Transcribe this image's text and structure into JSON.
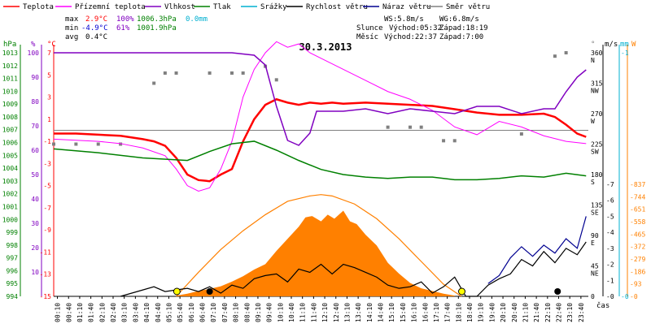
{
  "legend": [
    {
      "label": "Teplota",
      "color": "#ff0000"
    },
    {
      "label": "Přízemní teplota",
      "color": "#ff00ff"
    },
    {
      "label": "Vlhkost",
      "color": "#8000c0"
    },
    {
      "label": "Tlak",
      "color": "#008000"
    },
    {
      "label": "Srážky",
      "color": "#00b0d0"
    },
    {
      "label": "Rychlost větru",
      "color": "#000000"
    },
    {
      "label": "Náraz větru",
      "color": "#000090"
    },
    {
      "label": "Směr větru",
      "color": "#808080"
    }
  ],
  "stats": {
    "max_label": "max",
    "max_temp": "2.9°C",
    "max_hum": "100%",
    "max_press": "1006.3hPa",
    "max_rain": "0.0mm",
    "min_label": "min",
    "min_temp": "-4.9°C",
    "min_hum": "61%",
    "min_press": "1001.9hPa",
    "avg_label": "avg",
    "avg_temp": "0.4°C"
  },
  "wind_stats": {
    "ws": "WS:5.8m/s",
    "wg": "WG:6.8m/s"
  },
  "sun": {
    "label": "Slunce",
    "rise": "Východ:05:32",
    "set": "Západ:18:19"
  },
  "moon": {
    "label": "Měsíc",
    "rise": "Východ:22:37",
    "set": "Západ:7:00"
  },
  "date": "30.3.2013",
  "axis_units": {
    "hpa": "hPa",
    "pct": "%",
    "degc": "°C",
    "deg": "°",
    "ms": "m/s",
    "mm": "mm",
    "wm2": "W"
  },
  "time_label": "čas",
  "colors": {
    "temp": "#ff0000",
    "ground": "#ff00ff",
    "hum": "#8000c0",
    "press": "#008000",
    "rain": "#00b0d0",
    "speed": "#000000",
    "gust": "#000090",
    "dir": "#808080",
    "solar": "#ff8000"
  },
  "chart_data": {
    "type": "line",
    "x_ticks": [
      "00:10",
      "00:40",
      "01:10",
      "01:40",
      "02:10",
      "02:40",
      "03:10",
      "03:40",
      "04:10",
      "04:40",
      "05:10",
      "05:40",
      "06:10",
      "06:40",
      "07:10",
      "07:40",
      "08:10",
      "08:40",
      "09:10",
      "09:40",
      "10:10",
      "10:40",
      "11:10",
      "11:40",
      "12:10",
      "12:40",
      "13:10",
      "13:40",
      "14:10",
      "14:40",
      "15:10",
      "15:40",
      "16:10",
      "16:40",
      "17:10",
      "17:40",
      "18:10",
      "18:40",
      "19:10",
      "19:40",
      "20:10",
      "20:40",
      "21:10",
      "21:40",
      "22:10",
      "22:40",
      "23:10",
      "23:40"
    ],
    "axes": {
      "pressure_hpa": {
        "ticks": [
          1013,
          1012,
          1011,
          1010,
          1009,
          1008,
          1007,
          1006,
          1005,
          1004,
          1003,
          1002,
          1001,
          1000,
          999,
          998,
          997,
          996,
          995,
          994
        ]
      },
      "humidity_pct": {
        "ticks": [
          100,
          90,
          80,
          70,
          60,
          50,
          40,
          30,
          20,
          10
        ]
      },
      "temp_c": {
        "ticks": [
          7,
          5,
          3,
          1,
          -1,
          -3,
          -5,
          -7,
          -9,
          -11,
          -13,
          -15
        ]
      },
      "wind_dir_deg": {
        "ticks": [
          360,
          315,
          270,
          225,
          180,
          135,
          90,
          45,
          0
        ],
        "dirs": [
          "N",
          "NW",
          "W",
          "SW",
          "S",
          "SE",
          "E",
          "NE",
          ""
        ]
      },
      "wind_speed_ms": {
        "ticks": [
          7,
          6,
          5,
          4,
          3,
          2,
          1,
          0
        ]
      },
      "rain_mm": {
        "ticks": [
          1,
          0
        ]
      },
      "solar_wm2": {
        "ticks": [
          837,
          744,
          651,
          558,
          465,
          372,
          279,
          186,
          93,
          0
        ]
      }
    },
    "series": [
      {
        "name": "Teplota",
        "axis": "temp_c",
        "x": [
          0,
          1,
          2,
          3,
          4,
          4.5,
          5,
          5.5,
          6,
          6.5,
          7,
          7.5,
          8,
          8.5,
          9,
          9.5,
          10,
          10.5,
          11,
          11.5,
          12,
          12.5,
          13,
          14,
          15,
          16,
          17,
          18,
          19,
          20,
          21,
          22,
          22.5,
          23,
          23.5,
          23.9
        ],
        "y": [
          -0.3,
          -0.3,
          -0.4,
          -0.5,
          -0.8,
          -1.0,
          -1.4,
          -2.5,
          -4.0,
          -4.5,
          -4.6,
          -4.0,
          -3.5,
          -1.0,
          1.0,
          2.3,
          2.8,
          2.5,
          2.3,
          2.5,
          2.4,
          2.5,
          2.4,
          2.5,
          2.4,
          2.3,
          2.2,
          1.9,
          1.6,
          1.4,
          1.4,
          1.5,
          1.2,
          0.5,
          -0.3,
          -0.6
        ]
      },
      {
        "name": "Přízemní teplota",
        "axis": "temp_c",
        "x": [
          0,
          1,
          2,
          3,
          4,
          5,
          5.5,
          6,
          6.5,
          7,
          7.5,
          8,
          8.5,
          9,
          9.5,
          10,
          10.5,
          11,
          11.5,
          12,
          13,
          14,
          15,
          16,
          17,
          18,
          19,
          20,
          21,
          22,
          23,
          23.9
        ],
        "y": [
          -0.8,
          -0.9,
          -1.0,
          -1.2,
          -1.6,
          -2.3,
          -3.5,
          -5.0,
          -5.5,
          -5.2,
          -3.5,
          -1.0,
          3.0,
          5.5,
          7.0,
          8.0,
          7.5,
          7.8,
          7.0,
          6.5,
          5.5,
          4.5,
          3.5,
          2.8,
          1.8,
          0.3,
          -0.4,
          0.8,
          0.3,
          -0.5,
          -1.0,
          -1.2
        ]
      },
      {
        "name": "Vlhkost",
        "axis": "humidity_pct",
        "x": [
          0,
          2,
          4,
          6,
          8,
          9,
          9.5,
          10,
          10.5,
          11,
          11.5,
          11.8,
          12,
          13,
          14,
          15,
          16,
          17,
          18,
          19,
          20,
          21,
          22,
          22.5,
          23,
          23.5,
          23.9
        ],
        "y": [
          100,
          100,
          100,
          100,
          100,
          99,
          95,
          78,
          64,
          62,
          67,
          76,
          76,
          76,
          77,
          75,
          77,
          76,
          75,
          78,
          78,
          75,
          77,
          77,
          84,
          90,
          93
        ]
      },
      {
        "name": "Tlak",
        "axis": "pressure_hpa",
        "x": [
          0,
          2,
          4,
          6,
          7,
          8,
          9,
          10,
          11,
          12,
          13,
          14,
          15,
          16,
          17,
          18,
          19,
          20,
          21,
          22,
          23,
          23.9
        ],
        "y": [
          1005.5,
          1005.2,
          1004.8,
          1004.6,
          1005.3,
          1005.9,
          1006.1,
          1005.4,
          1004.6,
          1003.9,
          1003.5,
          1003.3,
          1003.2,
          1003.3,
          1003.3,
          1003.1,
          1003.1,
          1003.2,
          1003.4,
          1003.3,
          1003.6,
          1003.4
        ]
      },
      {
        "name": "Rychlost větru",
        "axis": "wind_speed_ms",
        "x": [
          3,
          4,
          4.5,
          5,
          5.5,
          6,
          6.5,
          7,
          7.5,
          8,
          8.5,
          9,
          9.5,
          10,
          10.5,
          11,
          11.5,
          12,
          12.5,
          13,
          13.5,
          14,
          14.5,
          15,
          15.5,
          16,
          16.5,
          17,
          17.5,
          18,
          18.5,
          19,
          19.5,
          20,
          20.5,
          21,
          21.5,
          22,
          22.5,
          23,
          23.5,
          23.9
        ],
        "y": [
          0,
          0.4,
          0.6,
          0.3,
          0.4,
          0.5,
          0.3,
          0.6,
          0.2,
          0.7,
          0.5,
          1.1,
          1.3,
          1.4,
          0.9,
          1.7,
          1.5,
          2.0,
          1.4,
          2.0,
          1.8,
          1.5,
          1.2,
          0.7,
          0.5,
          0.6,
          0.9,
          0.2,
          0.6,
          1.2,
          0,
          0,
          0.7,
          1.1,
          1.4,
          2.3,
          1.9,
          2.8,
          2.1,
          3.0,
          2.6,
          3.4
        ]
      },
      {
        "name": "Náraz větru",
        "axis": "wind_speed_ms",
        "x": [
          19.5,
          20,
          20.5,
          21,
          21.5,
          22,
          22.5,
          23,
          23.5,
          23.9
        ],
        "y": [
          0.8,
          1.3,
          2.4,
          3.1,
          2.5,
          3.2,
          2.7,
          3.6,
          3.0,
          5.0
        ]
      },
      {
        "name": "Solar",
        "axis": "solar_wm2",
        "x": [
          5.5,
          6,
          6.5,
          7,
          7.5,
          8,
          8.5,
          9,
          9.5,
          10,
          10.5,
          11,
          11.3,
          11.6,
          12,
          12.3,
          12.6,
          13,
          13.3,
          13.6,
          14,
          14.5,
          15,
          15.5,
          16,
          16.5,
          17,
          17.5,
          18
        ],
        "y": [
          5,
          20,
          40,
          55,
          75,
          110,
          150,
          200,
          240,
          340,
          430,
          520,
          590,
          600,
          560,
          610,
          580,
          640,
          560,
          540,
          460,
          380,
          250,
          170,
          100,
          60,
          40,
          20,
          5
        ]
      },
      {
        "name": "Solar theoretical",
        "axis": "solar_wm2",
        "x": [
          5.5,
          6.5,
          7.5,
          8.5,
          9.5,
          10.5,
          11.5,
          12,
          12.5,
          13.5,
          14.5,
          15.5,
          16.5,
          17.5,
          18.3
        ],
        "y": [
          0,
          180,
          350,
          490,
          610,
          710,
          750,
          760,
          750,
          690,
          580,
          430,
          260,
          90,
          0
        ]
      }
    ]
  }
}
